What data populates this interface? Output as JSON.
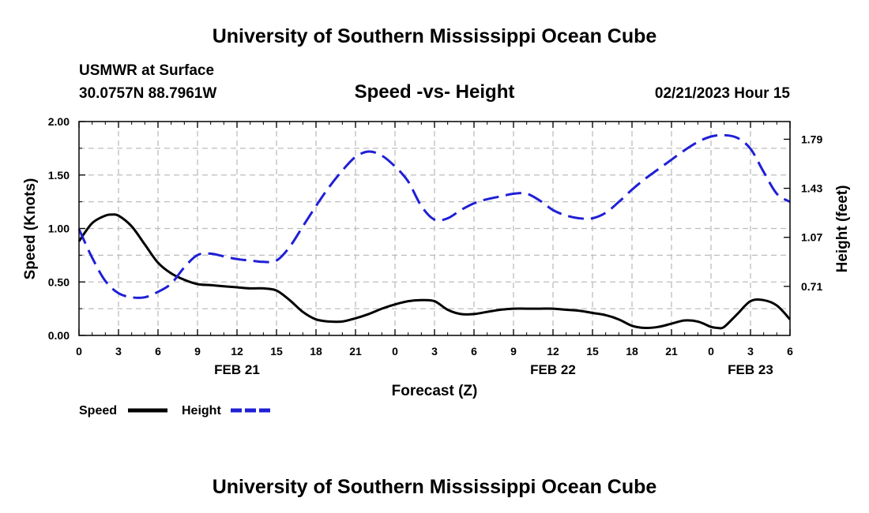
{
  "chart_data": {
    "type": "line",
    "title": "University of Southern Mississippi Ocean Cube",
    "footer_title": "University of Southern Mississippi Ocean Cube",
    "station": "USMWR at Surface",
    "location": "30.0757N  88.7961W",
    "subtitle": "Speed -vs- Height",
    "datetime": "02/21/2023 Hour 15",
    "xlabel": "Forecast (Z)",
    "ylabel_left": "Speed (Knots)",
    "ylabel_right": "Height (feet)",
    "x_unit": "forecast hours from FEB 21 00Z",
    "xlim": [
      0,
      54
    ],
    "x_tick_labels": [
      "0",
      "3",
      "6",
      "9",
      "12",
      "15",
      "18",
      "21",
      "0",
      "3",
      "6",
      "9",
      "12",
      "15",
      "18",
      "21",
      "0",
      "3",
      "6"
    ],
    "date_labels": [
      {
        "label": "FEB 21",
        "hour": 12
      },
      {
        "label": "FEB 22",
        "hour": 36
      },
      {
        "label": "FEB 23",
        "hour": 51
      }
    ],
    "ylim_left": [
      0,
      2.0
    ],
    "y_ticks_left": [
      "0.00",
      "0.50",
      "1.00",
      "1.50",
      "2.00"
    ],
    "ylim_right": [
      0.35,
      1.92
    ],
    "y_ticks_right": [
      "0.71",
      "1.07",
      "1.43",
      "1.79"
    ],
    "grid": true,
    "series": [
      {
        "name": "Speed",
        "axis": "left",
        "color": "#000000",
        "dash": "solid",
        "x": [
          0,
          1,
          2,
          2.5,
          3,
          4,
          5,
          6,
          7,
          8,
          9,
          10,
          11,
          12,
          13,
          14,
          15,
          16,
          17,
          18,
          19,
          20,
          21,
          22,
          23,
          24,
          25,
          26,
          27,
          28,
          29,
          30,
          31,
          32,
          33,
          34,
          35,
          36,
          37,
          38,
          39,
          40,
          41,
          42,
          43,
          44,
          45,
          46,
          47,
          48,
          48.5,
          49,
          50,
          51,
          52,
          53,
          54
        ],
        "values": [
          0.88,
          1.05,
          1.12,
          1.13,
          1.12,
          1.02,
          0.85,
          0.68,
          0.58,
          0.52,
          0.48,
          0.47,
          0.46,
          0.45,
          0.44,
          0.44,
          0.42,
          0.33,
          0.22,
          0.15,
          0.13,
          0.13,
          0.16,
          0.2,
          0.25,
          0.29,
          0.32,
          0.33,
          0.32,
          0.24,
          0.2,
          0.2,
          0.22,
          0.24,
          0.25,
          0.25,
          0.25,
          0.25,
          0.24,
          0.23,
          0.21,
          0.19,
          0.15,
          0.09,
          0.07,
          0.08,
          0.11,
          0.14,
          0.13,
          0.08,
          0.07,
          0.08,
          0.2,
          0.32,
          0.33,
          0.28,
          0.15
        ]
      },
      {
        "name": "Height",
        "axis": "right",
        "color": "#1f1fd6",
        "dash": "dashed",
        "x": [
          0,
          1,
          2,
          3,
          4,
          5,
          6,
          7,
          8,
          9,
          10,
          11,
          12,
          13,
          14,
          15,
          16,
          17,
          18,
          19,
          20,
          21,
          22,
          23,
          24,
          25,
          26,
          27,
          28,
          29,
          30,
          31,
          32,
          33,
          34,
          35,
          36,
          37,
          38,
          39,
          40,
          41,
          42,
          43,
          44,
          45,
          46,
          47,
          48,
          49,
          50,
          51,
          52,
          53,
          54
        ],
        "values": [
          1.13,
          0.92,
          0.75,
          0.66,
          0.63,
          0.63,
          0.67,
          0.73,
          0.85,
          0.94,
          0.95,
          0.93,
          0.91,
          0.9,
          0.89,
          0.9,
          1.0,
          1.15,
          1.3,
          1.44,
          1.56,
          1.66,
          1.7,
          1.67,
          1.59,
          1.48,
          1.3,
          1.2,
          1.21,
          1.27,
          1.32,
          1.35,
          1.37,
          1.39,
          1.39,
          1.34,
          1.27,
          1.23,
          1.21,
          1.21,
          1.25,
          1.33,
          1.42,
          1.5,
          1.57,
          1.64,
          1.71,
          1.77,
          1.81,
          1.82,
          1.8,
          1.72,
          1.55,
          1.39,
          1.33
        ]
      }
    ],
    "legend": [
      {
        "label": "Speed",
        "color": "#000000",
        "dash": "solid"
      },
      {
        "label": "Height",
        "color": "#1f1fd6",
        "dash": "dashed"
      }
    ]
  }
}
